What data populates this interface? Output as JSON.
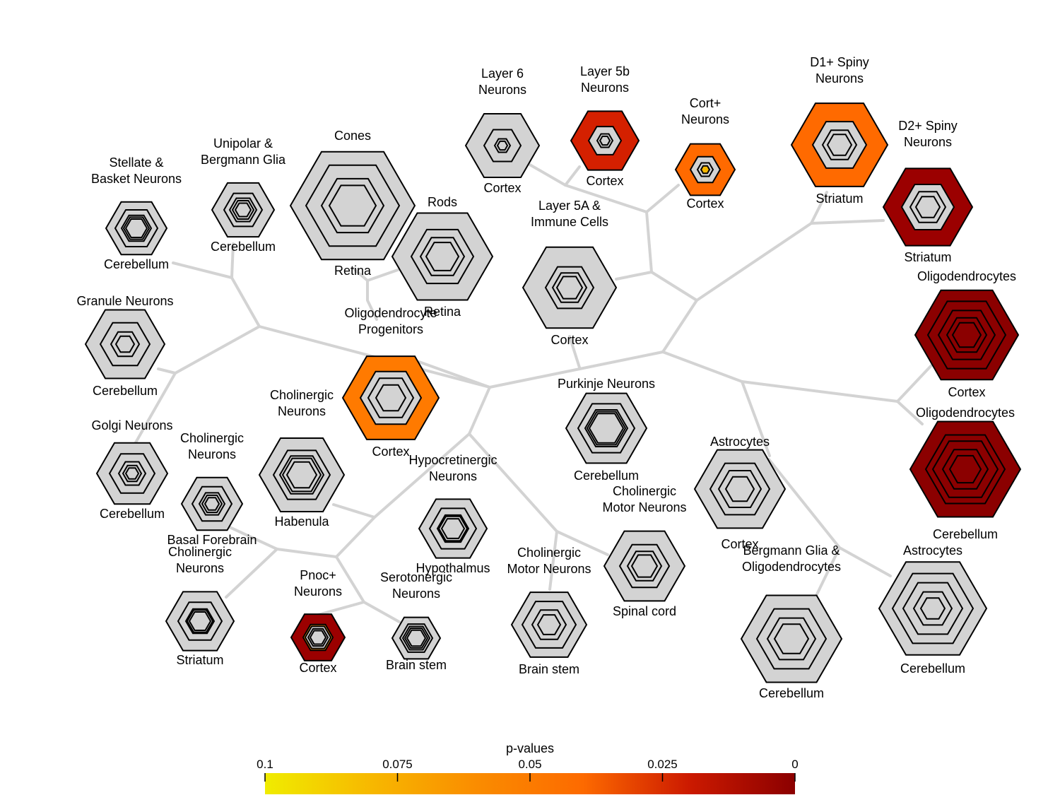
{
  "legend": {
    "title": "p-values",
    "ticks": [
      "0.1",
      "0.075",
      "0.05",
      "0.025",
      "0"
    ],
    "gradient": [
      "#f0ec00",
      "#f7b800",
      "#fa8c00",
      "#fd6a00",
      "#cc1a00",
      "#8b0000"
    ]
  },
  "colors": {
    "edge": "#d3d3d3",
    "hex_fill": "#d3d3d3",
    "hex_stroke": "#000000",
    "background": "#ffffff"
  },
  "nodes": [
    {
      "id": "stellate",
      "top": [
        "Stellate &",
        "Basket Neurons"
      ],
      "bottom": [
        "Cerebellum"
      ],
      "fill": "#d3d3d3",
      "inner": null
    },
    {
      "id": "unipolar",
      "top": [
        "Unipolar &",
        "Bergmann Glia"
      ],
      "bottom": [
        "Cerebellum"
      ],
      "fill": "#d3d3d3",
      "inner": null
    },
    {
      "id": "cones",
      "top": [
        "Cones"
      ],
      "bottom": [
        "Retina"
      ],
      "fill": "#d3d3d3",
      "inner": null
    },
    {
      "id": "rods",
      "top": [
        "Rods"
      ],
      "bottom": [
        "Retina"
      ],
      "fill": "#d3d3d3",
      "inner": null
    },
    {
      "id": "layer6",
      "top": [
        "Layer 6",
        "Neurons"
      ],
      "bottom": [
        "Cortex"
      ],
      "fill": "#d3d3d3",
      "inner": null
    },
    {
      "id": "layer5b",
      "top": [
        "Layer 5b",
        "Neurons"
      ],
      "bottom": [
        "Cortex"
      ],
      "fill": "#d42000",
      "inner": null
    },
    {
      "id": "cort",
      "top": [
        "Cort+",
        "Neurons"
      ],
      "bottom": [
        "Cortex"
      ],
      "fill": "#ff6a00",
      "inner": "#f7b800"
    },
    {
      "id": "d1",
      "top": [
        "D1+ Spiny",
        "Neurons"
      ],
      "bottom": [
        "Striatum"
      ],
      "fill": "#ff6a00",
      "inner": null
    },
    {
      "id": "d2",
      "top": [
        "D2+ Spiny",
        "Neurons"
      ],
      "bottom": [
        "Striatum"
      ],
      "fill": "#9b0000",
      "inner": null
    },
    {
      "id": "layer5a",
      "top": [
        "Layer 5A &",
        "Immune Cells"
      ],
      "bottom": [
        "Cortex"
      ],
      "fill": "#d3d3d3",
      "inner": null
    },
    {
      "id": "granule",
      "top": [
        "Granule Neurons"
      ],
      "bottom": [
        "Cerebellum"
      ],
      "fill": "#d3d3d3",
      "inner": null
    },
    {
      "id": "opc",
      "top": [
        "Oligodendrocyte",
        "Progenitors"
      ],
      "bottom": [
        "Cortex"
      ],
      "fill": "#ff7a00",
      "inner": null
    },
    {
      "id": "oligo-cortex",
      "top": [
        "Oligodendrocytes"
      ],
      "bottom": [
        "Cortex"
      ],
      "fill": "#8b0000",
      "inner": "#8b0000"
    },
    {
      "id": "purkinje",
      "top": [
        "Purkinje Neurons"
      ],
      "bottom": [
        "Cerebellum"
      ],
      "fill": "#d3d3d3",
      "inner": null
    },
    {
      "id": "golgi",
      "top": [
        "Golgi Neurons"
      ],
      "bottom": [
        "Cerebellum"
      ],
      "fill": "#d3d3d3",
      "inner": null
    },
    {
      "id": "chol-hab",
      "top": [
        "Cholinergic",
        "Neurons"
      ],
      "bottom": [
        "Habenula"
      ],
      "fill": "#d3d3d3",
      "inner": null
    },
    {
      "id": "chol-bf",
      "top": [
        "Cholinergic",
        "Neurons"
      ],
      "bottom": [
        "Basal Forebrain"
      ],
      "fill": "#d3d3d3",
      "inner": null
    },
    {
      "id": "hypocret",
      "top": [
        "Hypocretinergic",
        "Neurons"
      ],
      "bottom": [
        "Hypothalmus"
      ],
      "fill": "#d3d3d3",
      "inner": null
    },
    {
      "id": "astro-cortex",
      "top": [
        "Astrocytes"
      ],
      "bottom": [
        "Cortex"
      ],
      "fill": "#d3d3d3",
      "inner": null
    },
    {
      "id": "oligo-cereb",
      "top": [
        "Oligodendrocytes"
      ],
      "bottom": [
        "Cerebellum"
      ],
      "fill": "#8b0000",
      "inner": "#8b0000"
    },
    {
      "id": "chol-motor-sc",
      "top": [
        "Cholinergic",
        "Motor Neurons"
      ],
      "bottom": [
        "Spinal cord"
      ],
      "fill": "#d3d3d3",
      "inner": null
    },
    {
      "id": "chol-str",
      "top": [
        "Cholinergic",
        "Neurons"
      ],
      "bottom": [
        "Striatum"
      ],
      "fill": "#d3d3d3",
      "inner": null
    },
    {
      "id": "pnoc",
      "top": [
        "Pnoc+",
        "Neurons"
      ],
      "bottom": [
        "Cortex"
      ],
      "fill": "#9b0000",
      "inner": "#f7941d"
    },
    {
      "id": "serot",
      "top": [
        "Serotonergic",
        "Neurons"
      ],
      "bottom": [
        "Brain stem"
      ],
      "fill": "#d3d3d3",
      "inner": null
    },
    {
      "id": "chol-motor-bs",
      "top": [
        "Cholinergic",
        "Motor Neurons"
      ],
      "bottom": [
        "Brain stem"
      ],
      "fill": "#d3d3d3",
      "inner": null
    },
    {
      "id": "bergmann-oligo",
      "top": [
        "Bergmann Glia &",
        "Oligodendrocytes"
      ],
      "bottom": [
        "Cerebellum"
      ],
      "fill": "#d3d3d3",
      "inner": null
    },
    {
      "id": "astro-cereb",
      "top": [
        "Astrocytes"
      ],
      "bottom": [
        "Cerebellum"
      ],
      "fill": "#d3d3d3",
      "inner": null
    }
  ]
}
